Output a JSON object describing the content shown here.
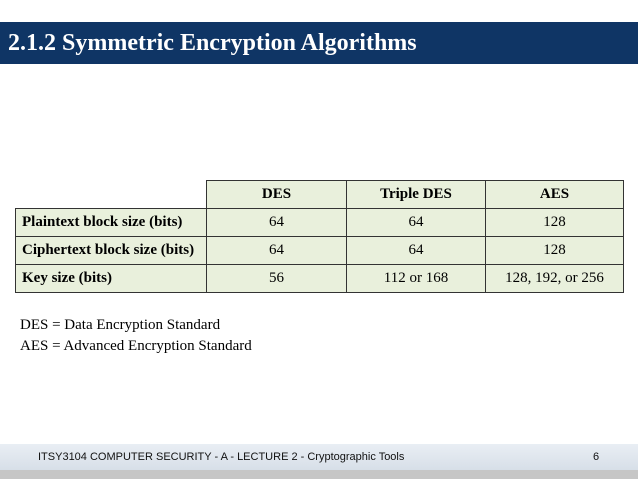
{
  "header": {
    "title": "2.1.2 Symmetric Encryption Algorithms"
  },
  "table": {
    "columns": [
      "DES",
      "Triple DES",
      "AES"
    ],
    "rows": [
      [
        "Plaintext block size (bits)",
        64,
        64,
        128
      ],
      [
        "Ciphertext block size (bits)",
        64,
        64,
        128
      ],
      [
        "Key size (bits)",
        56,
        "112 or 168",
        "128, 192, or 256"
      ]
    ]
  },
  "notes": [
    "DES = Data Encryption Standard",
    "AES = Advanced Encryption Standard"
  ],
  "footer": {
    "text": "ITSY3104 COMPUTER SECURITY - A - LECTURE 2 - Cryptographic Tools",
    "page": 6
  }
}
